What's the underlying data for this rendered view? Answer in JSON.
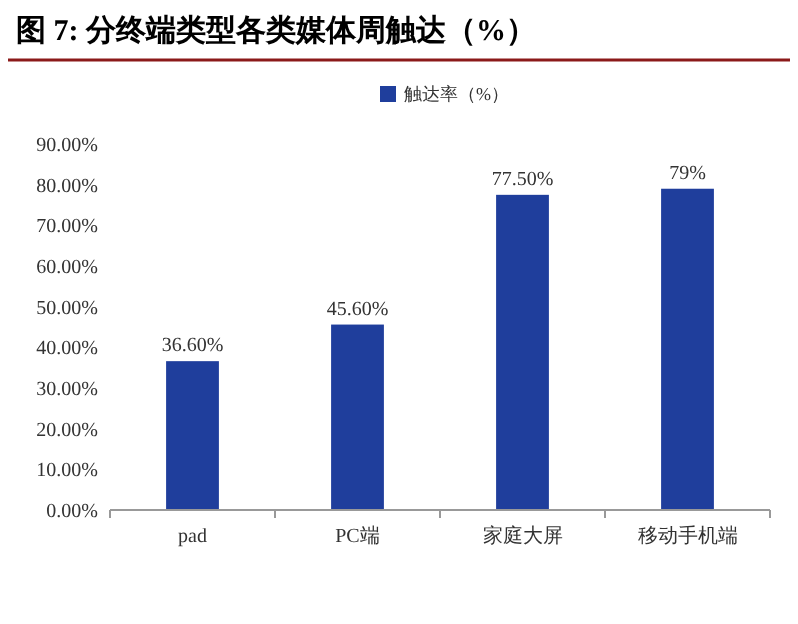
{
  "chart_data": {
    "type": "bar",
    "title": "图 7: 分终端类型各类媒体周触达（%）",
    "categories": [
      "pad",
      "PC端",
      "家庭大屏",
      "移动手机端"
    ],
    "series": [
      {
        "name": "触达率（%）",
        "color": "#1f3e9c",
        "values": [
          36.6,
          45.6,
          77.5,
          79
        ],
        "value_labels": [
          "36.60%",
          "45.60%",
          "77.50%",
          "79%"
        ]
      }
    ],
    "ylim": [
      0,
      90
    ],
    "yticks": [
      {
        "value": 0,
        "label": "0.00%"
      },
      {
        "value": 10,
        "label": "10.00%"
      },
      {
        "value": 20,
        "label": "20.00%"
      },
      {
        "value": 30,
        "label": "30.00%"
      },
      {
        "value": 40,
        "label": "40.00%"
      },
      {
        "value": 50,
        "label": "50.00%"
      },
      {
        "value": 60,
        "label": "60.00%"
      },
      {
        "value": 70,
        "label": "70.00%"
      },
      {
        "value": 80,
        "label": "80.00%"
      },
      {
        "value": 90,
        "label": "90.00%"
      }
    ],
    "legend": "top",
    "grid": false
  }
}
